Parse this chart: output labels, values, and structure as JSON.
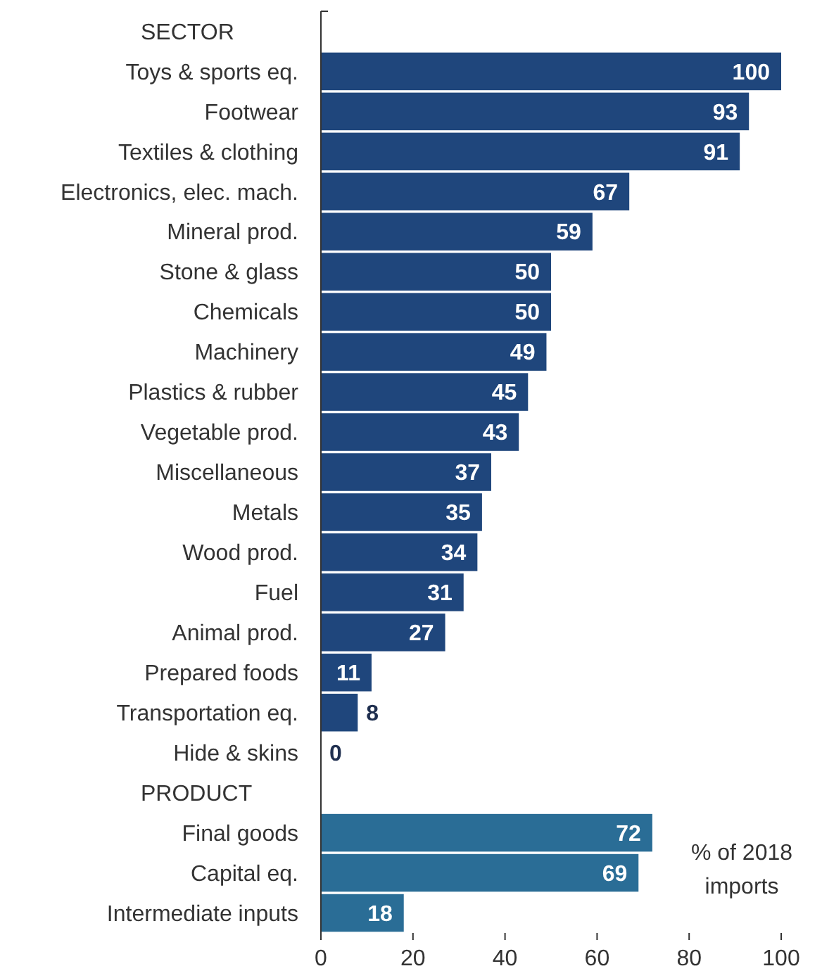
{
  "chart_data": {
    "type": "bar",
    "orientation": "horizontal",
    "categories": [
      null,
      "Toys & sports eq.",
      "Footwear",
      "Textiles & clothing",
      "Electronics, elec. mach.",
      "Mineral prod.",
      "Stone & glass",
      "Chemicals",
      "Machinery",
      "Plastics & rubber",
      "Vegetable prod.",
      "Miscellaneous",
      "Metals",
      "Wood prod.",
      "Fuel",
      "Animal prod.",
      "Prepared foods",
      "Transportation eq.",
      "Hide & skins",
      null,
      "Final goods",
      "Capital eq.",
      "Intermediate inputs"
    ],
    "values": [
      null,
      100,
      93,
      91,
      67,
      59,
      50,
      50,
      49,
      45,
      43,
      37,
      35,
      34,
      31,
      27,
      11,
      8,
      0,
      null,
      72,
      69,
      18
    ],
    "colors": [
      null,
      "#1f467c",
      "#1f467c",
      "#1f467c",
      "#1f467c",
      "#1f467c",
      "#1f467c",
      "#1f467c",
      "#1f467c",
      "#1f467c",
      "#1f467c",
      "#1f467c",
      "#1f467c",
      "#1f467c",
      "#1f467c",
      "#1f467c",
      "#1f467c",
      "#1f467c",
      "#1f467c",
      null,
      "#2a6d96",
      "#2a6d96",
      "#2a6d96"
    ],
    "data_labels": true,
    "xlim": [
      0,
      100
    ],
    "xticks": [
      0,
      20,
      40,
      60,
      80,
      100
    ],
    "annotations": [
      "SECTOR",
      "PRODUCT",
      "% of 2018 imports"
    ]
  }
}
